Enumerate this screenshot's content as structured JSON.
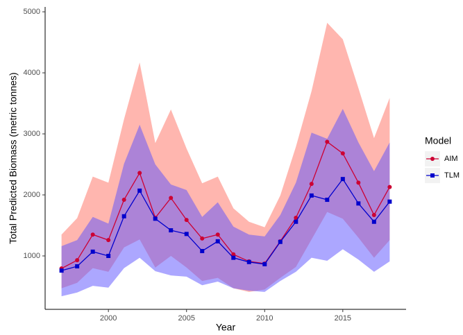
{
  "chart_data": {
    "type": "line",
    "x_label": "Year",
    "y_label": "Total Predicted Biomass (metric tonnes)",
    "x": [
      1997,
      1998,
      1999,
      2000,
      2001,
      2002,
      2003,
      2004,
      2005,
      2006,
      2007,
      2008,
      2009,
      2010,
      2011,
      2012,
      2013,
      2014,
      2015,
      2016,
      2017,
      2018
    ],
    "series": [
      {
        "name": "AIM",
        "color": "#cc0033",
        "ribbon_color": "#ff6e60",
        "marker": "circle",
        "values": [
          795,
          930,
          1350,
          1260,
          1920,
          2360,
          1625,
          1950,
          1590,
          1285,
          1350,
          1025,
          910,
          875,
          1240,
          1625,
          2180,
          2870,
          2680,
          2200,
          1670,
          2130
        ],
        "upper": [
          1350,
          1620,
          2300,
          2200,
          3240,
          4170,
          2850,
          3400,
          2760,
          2190,
          2300,
          1780,
          1560,
          1470,
          1990,
          2790,
          3700,
          4820,
          4550,
          3750,
          2930,
          3590
        ],
        "lower": [
          470,
          560,
          800,
          740,
          1140,
          1270,
          810,
          1000,
          810,
          590,
          640,
          470,
          410,
          450,
          640,
          820,
          1270,
          1720,
          1610,
          1300,
          970,
          1260
        ]
      },
      {
        "name": "TLM",
        "color": "#0000cc",
        "ribbon_color": "#5a50ff",
        "marker": "square",
        "values": [
          760,
          830,
          1070,
          1000,
          1650,
          2070,
          1610,
          1420,
          1360,
          1080,
          1240,
          970,
          900,
          865,
          1230,
          1560,
          1990,
          1920,
          2260,
          1860,
          1560,
          1890
        ],
        "upper": [
          1160,
          1260,
          1640,
          1530,
          2510,
          3150,
          2500,
          2170,
          2080,
          1640,
          1880,
          1480,
          1350,
          1320,
          1670,
          2200,
          3020,
          2920,
          3410,
          2860,
          2390,
          2860
        ],
        "lower": [
          340,
          400,
          510,
          480,
          800,
          970,
          750,
          680,
          660,
          520,
          580,
          470,
          430,
          410,
          590,
          740,
          970,
          920,
          1110,
          940,
          740,
          910
        ]
      }
    ],
    "xlim": [
      1995.95,
      2019.05
    ],
    "xticks": [
      2000,
      2005,
      2010,
      2015
    ],
    "ylim": [
      125,
      5080
    ],
    "yticks": [
      1000,
      2000,
      3000,
      4000,
      5000
    ],
    "grid": false,
    "legend_title": "Model",
    "legend_position": "right"
  }
}
